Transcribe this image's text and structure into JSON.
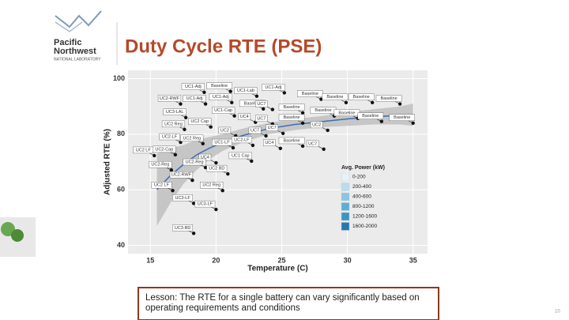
{
  "header": {
    "org_line1": "Pacific",
    "org_line2": "Northwest",
    "org_line3": "NATIONAL LABORATORY",
    "title": "Duty Cycle RTE (PSE)"
  },
  "chart_data": {
    "type": "scatter",
    "xlabel": "Temperature (C)",
    "ylabel": "Adjusted RTE (%)",
    "xlim": [
      13.3,
      36.1
    ],
    "ylim": [
      37,
      103
    ],
    "xticks": [
      15,
      20,
      25,
      30,
      35
    ],
    "yticks": [
      40,
      60,
      80,
      100
    ],
    "grid": true,
    "series": [
      {
        "color": "#111111",
        "labels": [
          "Baseline",
          "UC1-Adj",
          "UC1-Lab",
          "UC1-Adj",
          "UC2-RWF",
          "UC1-Adj",
          "UC1-Adj",
          "Baseline",
          "Baseline",
          "Baseline",
          "Baseline",
          "Baseline",
          "UC1-Cap",
          "UC3-LAL",
          "UC4",
          "UC7",
          "Baseline",
          "Baseline",
          "Baseline",
          "Baseline",
          "Baseline",
          "UC2 Reg",
          "UC2 Cap",
          "UC7",
          "Baseline",
          "UC2",
          "UC2",
          "UC7",
          "UC7",
          "UC2-LF",
          "UC2 Reg",
          "UC1-LF",
          "UC2-LF",
          "UC4",
          "Baseline",
          "UC7",
          "UC2 LF",
          "UC2-Cap",
          "UC4",
          "UC1 Cap",
          "UC2-Reg",
          "UC2-Reg",
          "UC2 BD",
          "UC2-RWF",
          "UC2 LF",
          "UC2 Reg",
          "UC3-LF",
          "UC3-LF",
          "UC3-BD"
        ],
        "x": [
          21.1,
          19.1,
          23.1,
          25.2,
          17.3,
          19.2,
          21.2,
          28.0,
          29.9,
          31.9,
          34.0,
          23.6,
          21.4,
          17.7,
          23.0,
          24.3,
          26.6,
          29.0,
          30.8,
          32.6,
          35.0,
          17.6,
          19.6,
          24.3,
          26.6,
          28.5,
          21.5,
          23.8,
          25.1,
          17.3,
          19.0,
          21.3,
          22.8,
          24.9,
          26.6,
          28.2,
          15.3,
          16.9,
          20.0,
          22.7,
          16.6,
          19.2,
          20.9,
          18.2,
          16.7,
          20.5,
          18.3,
          20.0,
          18.3
        ],
        "values": [
          95.4,
          95.1,
          93.7,
          94.9,
          90.9,
          90.9,
          91.4,
          92.6,
          91.4,
          91.4,
          90.9,
          89.1,
          86.6,
          86.0,
          84.3,
          88.9,
          87.7,
          86.6,
          85.7,
          84.6,
          84.0,
          81.7,
          82.6,
          83.7,
          84.0,
          81.4,
          79.4,
          79.4,
          80.3,
          77.1,
          76.6,
          75.1,
          76.0,
          74.9,
          75.7,
          74.6,
          72.3,
          72.6,
          69.7,
          70.3,
          67.1,
          68.0,
          65.7,
          63.4,
          59.7,
          59.7,
          55.1,
          52.9,
          44.3
        ]
      }
    ],
    "fit": {
      "color": "#3b6fb6",
      "x": [
        15.5,
        16.5,
        17.5,
        18.5,
        19.5,
        20.5,
        22,
        24,
        26,
        28,
        30,
        32,
        34,
        35
      ],
      "values": [
        60,
        65,
        69,
        72.5,
        75,
        77,
        79.5,
        82,
        83.5,
        84.5,
        85.5,
        86.3,
        86.8,
        87
      ],
      "lower": [
        47,
        55,
        62,
        67,
        71,
        74,
        77,
        80,
        81.5,
        82.5,
        83,
        83.5,
        83.5,
        83
      ],
      "upper": [
        73,
        75,
        76,
        78,
        79,
        80,
        82,
        84,
        85.5,
        86.5,
        88,
        89,
        90,
        91
      ]
    },
    "legend": {
      "title": "Avg. Power (kW)",
      "items": [
        "0-200",
        "200-400",
        "400-600",
        "800-1200",
        "1200-1600",
        "1600-2000"
      ],
      "colors": [
        "#e6f2fa",
        "#b9dcef",
        "#8cc5e3",
        "#5fadd6",
        "#3c94c6",
        "#2379b0"
      ]
    }
  },
  "lesson": {
    "line1": "Lesson: The RTE for a single battery can vary significantly based on",
    "line2": "operating requirements and conditions"
  },
  "page_number": "10"
}
